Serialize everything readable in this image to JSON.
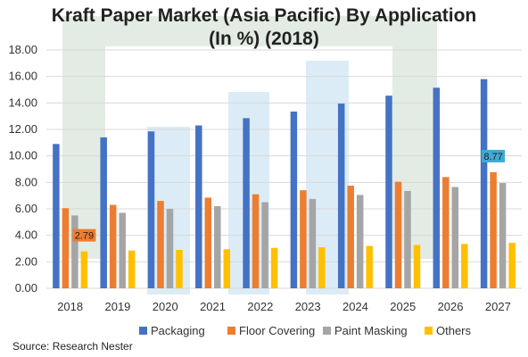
{
  "chart_data": {
    "type": "bar",
    "title_line1": "Kraft Paper Market (Asia Pacific) By Application",
    "title_line2": "(In %) (2018)",
    "categories": [
      "2018",
      "2019",
      "2020",
      "2021",
      "2022",
      "2023",
      "2024",
      "2025",
      "2026",
      "2027"
    ],
    "series": [
      {
        "name": "Packaging",
        "color": "#4472c4",
        "values": [
          10.9,
          11.4,
          11.85,
          12.3,
          12.85,
          13.35,
          13.95,
          14.55,
          15.15,
          15.8
        ]
      },
      {
        "name": "Floor Covering",
        "color": "#ed7d31",
        "values": [
          6.05,
          6.3,
          6.6,
          6.85,
          7.1,
          7.4,
          7.75,
          8.05,
          8.4,
          8.77
        ]
      },
      {
        "name": "Paint Masking",
        "color": "#a5a5a5",
        "values": [
          5.5,
          5.7,
          6.0,
          6.2,
          6.5,
          6.75,
          7.05,
          7.35,
          7.65,
          7.95
        ]
      },
      {
        "name": "Others",
        "color": "#ffc000",
        "values": [
          2.79,
          2.85,
          2.9,
          2.95,
          3.05,
          3.1,
          3.2,
          3.27,
          3.35,
          3.43
        ]
      }
    ],
    "data_labels": [
      {
        "series": "Others",
        "category": "2018",
        "text": "2.79",
        "bg": "#ed7d31"
      },
      {
        "series": "Floor Covering",
        "category": "2027",
        "text": "8.77",
        "bg": "#3fa9d6"
      }
    ],
    "ylim": [
      0,
      18
    ],
    "yticks": [
      "0.00",
      "2.00",
      "4.00",
      "6.00",
      "8.00",
      "10.00",
      "12.00",
      "14.00",
      "16.00",
      "18.00"
    ],
    "grid": true,
    "legend_position": "bottom"
  },
  "source": "Source: Research Nester"
}
